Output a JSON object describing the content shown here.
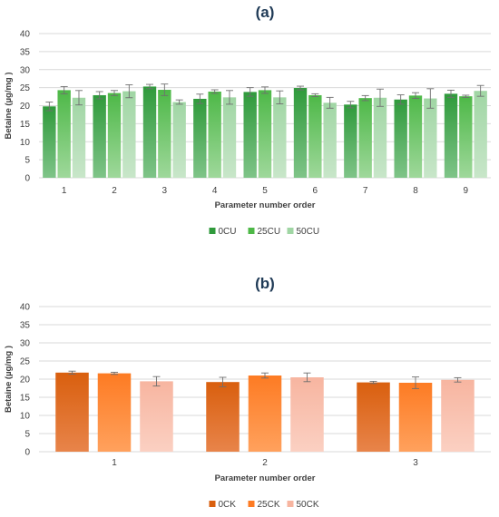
{
  "chart_data": [
    {
      "type": "bar",
      "title": "(a)",
      "xlabel": "Parameter number order",
      "ylabel": "Betaine (µg/mg )",
      "ylim": [
        0,
        40
      ],
      "yticks": [
        0,
        5,
        10,
        15,
        20,
        25,
        30,
        35,
        40
      ],
      "categories": [
        "1",
        "2",
        "3",
        "4",
        "5",
        "6",
        "7",
        "8",
        "9"
      ],
      "grid": true,
      "legend_position": "bottom",
      "series": [
        {
          "name": "0CU",
          "color_top": "#2f9a3b",
          "color_bottom": "#7fc488",
          "values": [
            19.8,
            22.9,
            25.3,
            21.9,
            23.8,
            24.9,
            20.3,
            21.7,
            23.3
          ],
          "errors": [
            1.2,
            1.0,
            0.6,
            1.3,
            1.2,
            0.5,
            0.9,
            1.3,
            1.0
          ]
        },
        {
          "name": "25CU",
          "color_top": "#4db847",
          "color_bottom": "#9fd89b",
          "values": [
            24.3,
            23.5,
            24.4,
            23.9,
            24.3,
            22.9,
            22.1,
            22.8,
            22.6
          ],
          "errors": [
            1.0,
            0.7,
            1.6,
            0.5,
            0.9,
            0.4,
            0.7,
            0.8,
            0.3
          ]
        },
        {
          "name": "50CU",
          "color_top": "#a0d6a4",
          "color_bottom": "#c8e6c9",
          "values": [
            22.2,
            24.0,
            21.0,
            22.3,
            22.3,
            20.8,
            22.2,
            22.0,
            24.1
          ],
          "errors": [
            2.0,
            1.8,
            0.6,
            1.9,
            1.8,
            1.5,
            2.4,
            2.7,
            1.5
          ]
        }
      ]
    },
    {
      "type": "bar",
      "title": "(b)",
      "xlabel": "Parameter number order",
      "ylabel": "Betaine (µg/mg )",
      "ylim": [
        0,
        40
      ],
      "yticks": [
        0,
        5,
        10,
        15,
        20,
        25,
        30,
        35,
        40
      ],
      "categories": [
        "1",
        "2",
        "3"
      ],
      "grid": true,
      "legend_position": "bottom",
      "series": [
        {
          "name": "0CK",
          "color_top": "#d95f0e",
          "color_bottom": "#e8844a",
          "values": [
            21.8,
            19.2,
            19.1
          ],
          "errors": [
            0.4,
            1.3,
            0.3
          ]
        },
        {
          "name": "25CK",
          "color_top": "#fd7b23",
          "color_bottom": "#ffa15d",
          "values": [
            21.6,
            21.0,
            19.0
          ],
          "errors": [
            0.3,
            0.7,
            1.6
          ]
        },
        {
          "name": "50CK",
          "color_top": "#f7b5a0",
          "color_bottom": "#fbd0c2",
          "values": [
            19.4,
            20.5,
            19.8
          ],
          "errors": [
            1.3,
            1.2,
            0.6
          ]
        }
      ]
    }
  ]
}
